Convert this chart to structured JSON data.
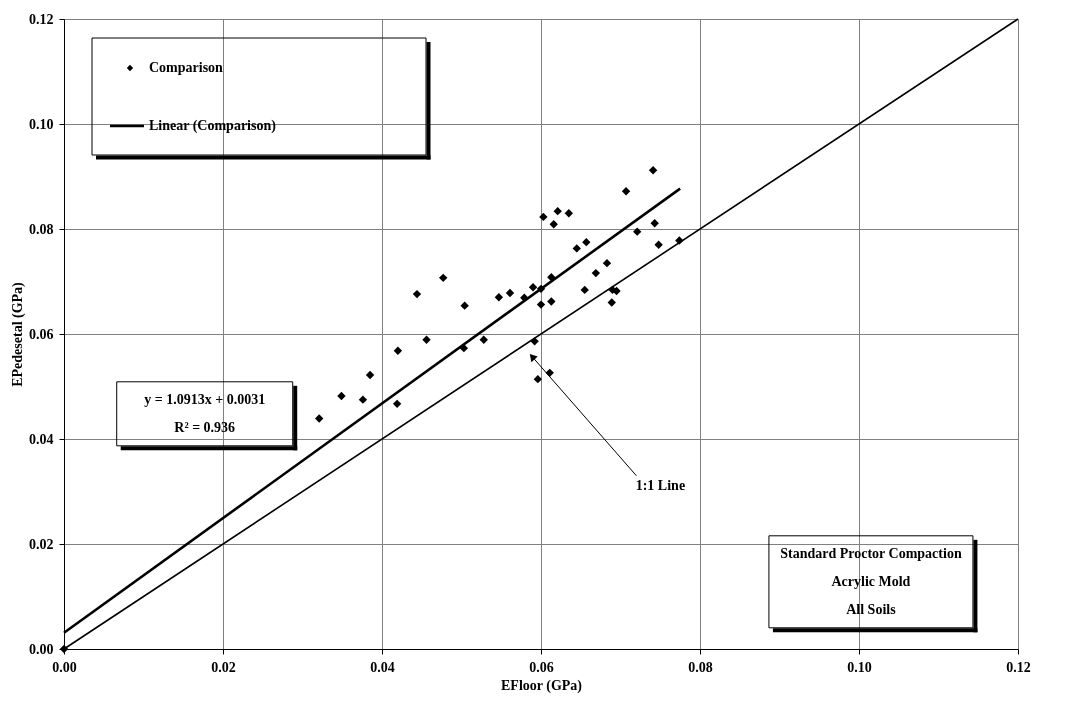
{
  "chart_data": {
    "type": "scatter",
    "xlabel": "EFloor (GPa)",
    "ylabel": "EPedesetal (GPa)",
    "xlim": [
      0,
      0.12
    ],
    "ylim": [
      0,
      0.12
    ],
    "xticks": [
      {
        "value": 0,
        "label": "0.00"
      },
      0.02,
      0.04,
      0.06,
      0.08,
      {
        "value": 0.1,
        "label": "0.10"
      },
      0.12
    ],
    "yticks": [
      {
        "value": 0,
        "label": "0.00"
      },
      0.02,
      0.04,
      0.06,
      0.08,
      {
        "value": 0.1,
        "label": "0.10"
      },
      0.12
    ],
    "grid": true,
    "legend": "top left",
    "series": [
      {
        "name": "Comparison",
        "marker": "diamond",
        "color": "#000000",
        "x": [
          0,
          0.0321,
          0.0349,
          0.0376,
          0.0385,
          0.042,
          0.0419,
          0.0444,
          0.0456,
          0.0477,
          0.0504,
          0.0503,
          0.0528,
          0.0547,
          0.0561,
          0.0579,
          0.059,
          0.0592,
          0.0596,
          0.06,
          0.06,
          0.0603,
          0.0611,
          0.0613,
          0.0613,
          0.0616,
          0.0621,
          0.0635,
          0.0645,
          0.0655,
          0.0657,
          0.0669,
          0.0683,
          0.0689,
          0.069,
          0.0695,
          0.0707,
          0.0721,
          0.0741,
          0.0743,
          0.0748,
          0.0774
        ],
        "values": [
          0,
          0.0439,
          0.0482,
          0.0475,
          0.0522,
          0.0568,
          0.0467,
          0.0676,
          0.0589,
          0.0707,
          0.0654,
          0.0573,
          0.0589,
          0.067,
          0.0678,
          0.0669,
          0.0689,
          0.0586,
          0.0514,
          0.0656,
          0.0686,
          0.0823,
          0.0526,
          0.0662,
          0.0708,
          0.0809,
          0.0834,
          0.083,
          0.0763,
          0.0684,
          0.0775,
          0.0716,
          0.0735,
          0.066,
          0.0684,
          0.0682,
          0.0872,
          0.0795,
          0.0912,
          0.0811,
          0.077,
          0.0778
        ]
      },
      {
        "name": "Linear (Comparison)",
        "type": "line",
        "color": "#000000",
        "x": [
          0,
          0.0775
        ],
        "values": [
          0.0031,
          0.0877
        ]
      },
      {
        "type": "line",
        "color": "#000000",
        "x": [
          0,
          0.12
        ],
        "values": [
          0,
          0.12
        ]
      }
    ],
    "annotations": [
      "y = 1.0913x + 0.0031",
      "R² = 0.936",
      "Standard Proctor Compaction",
      "Acrylic Mold",
      "All Soils",
      "1:1 Line"
    ]
  }
}
